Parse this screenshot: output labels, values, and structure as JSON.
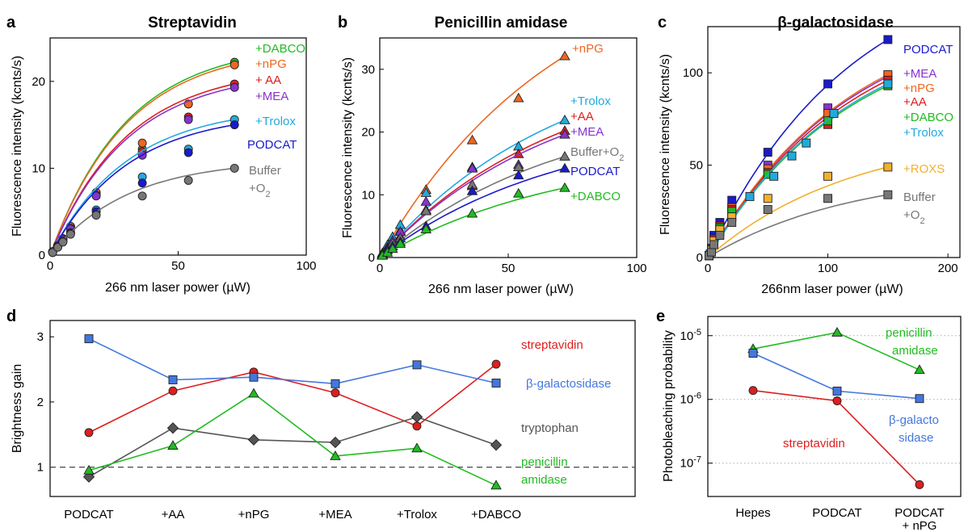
{
  "colors": {
    "green": "#22bb22",
    "orange": "#ee6622",
    "red": "#dd1f1f",
    "purple": "#8833cc",
    "cyan": "#22aadd",
    "blue": "#1a1acc",
    "gray": "#777777",
    "yellow": "#f0b030",
    "light_blue": "#4477dd",
    "dark_gray": "#555555"
  },
  "chart_data": [
    {
      "panel_label": "a",
      "type": "scatter",
      "title": "Streptavidin",
      "xlabel": "266 nm laser power (µW)",
      "ylabel": "Fluorescence intensity (kcnts/s)",
      "xlim": [
        0,
        100
      ],
      "ylim": [
        0,
        25
      ],
      "xticks": [
        0,
        50,
        100
      ],
      "yticks": [
        0,
        10,
        20
      ],
      "marker": "circle",
      "series": [
        {
          "name": "+DABCO",
          "color": "#22bb22",
          "x": [
            1,
            3,
            5,
            8,
            18,
            36,
            54,
            72
          ],
          "y": [
            0.4,
            1.1,
            1.9,
            3.3,
            7.2,
            12.2,
            17.4,
            22.2
          ],
          "fit": [
            0.6,
            10,
            15.5,
            19.6,
            22.0
          ]
        },
        {
          "name": "+nPG",
          "color": "#ee6622",
          "x": [
            1,
            3,
            5,
            8,
            18,
            36,
            54,
            72
          ],
          "y": [
            0.4,
            1.1,
            1.9,
            3.3,
            7.2,
            12.9,
            17.4,
            21.9
          ],
          "fit": [
            0.6,
            10,
            15.5,
            19.5,
            21.8
          ]
        },
        {
          "name": "+ AA",
          "color": "#dd1f1f",
          "x": [
            1,
            3,
            5,
            8,
            18,
            36,
            54,
            72
          ],
          "y": [
            0.4,
            1.1,
            1.8,
            3.1,
            6.9,
            11.9,
            15.9,
            19.7
          ],
          "fit": [
            0.6,
            10,
            15,
            17.7,
            19.5
          ]
        },
        {
          "name": "+MEA",
          "color": "#8833cc",
          "x": [
            1,
            3,
            5,
            8,
            18,
            36,
            54,
            72
          ],
          "y": [
            0.4,
            1.1,
            1.8,
            3.0,
            6.8,
            11.5,
            15.6,
            19.3
          ],
          "fit": [
            0.6,
            10,
            15,
            17.5,
            19.2
          ]
        },
        {
          "name": "+Trolox",
          "color": "#22aadd",
          "x": [
            1,
            3,
            5,
            8,
            18,
            36,
            54,
            72
          ],
          "y": [
            0.3,
            1.0,
            1.6,
            2.6,
            5.2,
            9.0,
            12.2,
            15.6
          ],
          "fit": [
            0.6,
            10,
            15,
            17.5,
            19.2
          ]
        },
        {
          "name": "PODCAT",
          "color": "#1a1acc",
          "x": [
            1,
            3,
            5,
            8,
            18,
            36,
            54,
            72
          ],
          "y": [
            0.3,
            1.0,
            1.6,
            2.5,
            5.0,
            8.3,
            11.8,
            15.0
          ],
          "fit": [
            0.6,
            10,
            15,
            17.5,
            19.2
          ]
        },
        {
          "name": "Buffer",
          "name_line2": "+O",
          "name_sub": "2",
          "color": "#777777",
          "x": [
            1,
            3,
            5,
            8,
            18,
            36,
            54,
            72
          ],
          "y": [
            0.3,
            0.9,
            1.5,
            2.4,
            4.6,
            6.8,
            8.6,
            10.0
          ],
          "fit": [
            0.6,
            10,
            15,
            17.5,
            19.2
          ]
        }
      ]
    },
    {
      "panel_label": "b",
      "type": "scatter",
      "title": "Penicillin amidase",
      "xlabel": "266 nm laser power (µW)",
      "ylabel": "Fluorescence intensity (kcnts/s)",
      "xlim": [
        0,
        100
      ],
      "ylim": [
        0,
        35
      ],
      "xticks": [
        0,
        50,
        100
      ],
      "yticks": [
        0,
        10,
        20,
        30
      ],
      "marker": "triangle",
      "series": [
        {
          "name": "+nPG",
          "color": "#ee6622",
          "x": [
            1,
            3,
            5,
            8,
            18,
            36,
            54,
            72
          ],
          "y": [
            0.5,
            1.6,
            2.9,
            4.3,
            10.8,
            18.7,
            25.4,
            32.1
          ],
          "fit": [
            0.6,
            10,
            15,
            17.5,
            19.2
          ]
        },
        {
          "name": "+Trolox",
          "color": "#22aadd",
          "x": [
            1,
            3,
            5,
            8,
            18,
            36,
            54,
            72
          ],
          "y": [
            0.7,
            2.0,
            3.3,
            5.2,
            10.3,
            14.4,
            17.7,
            21.9
          ],
          "fit": [
            0.6,
            10,
            15,
            17.5,
            19.2
          ]
        },
        {
          "name": "+AA",
          "color": "#dd1f1f",
          "x": [
            1,
            3,
            5,
            8,
            18,
            36,
            54,
            72
          ],
          "y": [
            0.5,
            1.6,
            2.6,
            3.4,
            7.6,
            11.4,
            16.5,
            20.2
          ],
          "fit": [
            0.6,
            10,
            15,
            17.5,
            19.2
          ]
        },
        {
          "name": "+MEA",
          "color": "#8833cc",
          "x": [
            1,
            3,
            5,
            8,
            18,
            36,
            54,
            72
          ],
          "y": [
            0.5,
            1.6,
            2.7,
            4.1,
            8.9,
            14.2,
            14.8,
            19.6
          ],
          "fit": [
            0.6,
            10,
            15,
            17.5,
            19.2
          ]
        },
        {
          "name": "Buffer+O",
          "name_sub": "2",
          "color": "#777777",
          "x": [
            1,
            3,
            5,
            8,
            18,
            36,
            54,
            72
          ],
          "y": [
            0.5,
            1.4,
            2.3,
            3.1,
            7.4,
            11.6,
            14.4,
            16.1
          ],
          "fit": [
            0.6,
            10,
            15,
            17.5,
            19.2
          ]
        },
        {
          "name": "PODCAT",
          "color": "#1a1acc",
          "x": [
            1,
            3,
            5,
            8,
            18,
            36,
            54,
            72
          ],
          "y": [
            0.4,
            1.2,
            1.8,
            2.5,
            5.0,
            10.6,
            13.1,
            14.2
          ],
          "fit": [
            0.6,
            10,
            15,
            17.5,
            19.2
          ]
        },
        {
          "name": "+DABCO",
          "color": "#22bb22",
          "x": [
            1,
            3,
            5,
            8,
            18,
            36,
            54,
            72
          ],
          "y": [
            0.3,
            0.8,
            1.4,
            2.2,
            4.5,
            7.0,
            10.2,
            11.1
          ],
          "fit": [
            0.6,
            10,
            15,
            17.5,
            19.2
          ]
        }
      ]
    },
    {
      "panel_label": "c",
      "type": "scatter",
      "title": "β-galactosidase",
      "xlabel": "266nm laser power (µW)",
      "ylabel": "Fluorescence intensity (kcnts/s)",
      "xlim": [
        0,
        210
      ],
      "ylim": [
        0,
        125
      ],
      "xticks": [
        0,
        100,
        200
      ],
      "yticks": [
        0,
        50,
        100
      ],
      "marker": "square",
      "series": [
        {
          "name": "PODCAT",
          "color": "#1a1acc",
          "x": [
            1,
            3,
            5,
            10,
            20,
            50,
            100,
            150
          ],
          "y": [
            1,
            5,
            12,
            19,
            31,
            57,
            94,
            118
          ],
          "fit": [
            0.6,
            10,
            15,
            17.5,
            19.2
          ]
        },
        {
          "name": "+MEA",
          "color": "#8833cc",
          "x": [
            1,
            3,
            5,
            10,
            20,
            50,
            100,
            150
          ],
          "y": [
            1,
            4,
            10,
            17,
            27,
            50,
            81,
            98
          ],
          "fit": [
            0.6,
            10,
            15,
            17.5,
            19.2
          ]
        },
        {
          "name": "+nPG",
          "color": "#ee6622",
          "x": [
            1,
            3,
            5,
            10,
            20,
            50,
            100,
            150
          ],
          "y": [
            1,
            4,
            10,
            17,
            27,
            48,
            78,
            99
          ],
          "fit": [
            0.6,
            10,
            15,
            17.5,
            19.2
          ]
        },
        {
          "name": "+AA",
          "color": "#dd1f1f",
          "x": [
            1,
            3,
            5,
            10,
            20,
            50,
            100,
            150
          ],
          "y": [
            1,
            4,
            10,
            17,
            26,
            46,
            72,
            96
          ],
          "fit": [
            0.6,
            10,
            15,
            17.5,
            19.2
          ]
        },
        {
          "name": "+DABCO",
          "color": "#22bb22",
          "x": [
            1,
            3,
            5,
            10,
            20,
            50,
            100,
            150
          ],
          "y": [
            1,
            4,
            9,
            16,
            25,
            45,
            74,
            93
          ],
          "fit": [
            0.6,
            10,
            15,
            17.5,
            19.2
          ]
        },
        {
          "name": "+Trolox",
          "color": "#22aadd",
          "x": [
            2,
            5,
            10,
            20,
            35,
            55,
            70,
            82,
            105,
            150
          ],
          "y": [
            2,
            8,
            14,
            22,
            33,
            44,
            55,
            62,
            78,
            94
          ],
          "fit": [
            0.6,
            10,
            15,
            17.5,
            19.2
          ]
        },
        {
          "name": "+ROXS",
          "color": "#f0b030",
          "x": [
            1,
            3,
            5,
            10,
            20,
            50,
            100,
            150
          ],
          "y": [
            1,
            4,
            9,
            15,
            22,
            32,
            44,
            49
          ],
          "fit": [
            0.6,
            10,
            15,
            17.5,
            19.2
          ]
        },
        {
          "name": "Buffer",
          "name_line2": "+O",
          "name_sub": "2",
          "color": "#777777",
          "x": [
            1,
            3,
            5,
            10,
            20,
            50,
            100,
            150
          ],
          "y": [
            1,
            3,
            7,
            12,
            19,
            26,
            32,
            34
          ],
          "fit": [
            0.6,
            10,
            15,
            17.5,
            19.2
          ]
        }
      ]
    },
    {
      "panel_label": "d",
      "type": "line",
      "xlabel": "",
      "ylabel": "Brightness gain",
      "ylim": [
        0.55,
        3.25
      ],
      "yticks": [
        1,
        2,
        3
      ],
      "reference_line": 1,
      "categories": [
        "PODCAT",
        "+AA",
        "+nPG",
        "+MEA",
        "+Trolox",
        "+DABCO"
      ],
      "series": [
        {
          "name": "streptavidin",
          "color": "#dd1f1f",
          "marker": "circle",
          "values": [
            1.53,
            2.17,
            2.46,
            2.14,
            1.63,
            2.58
          ]
        },
        {
          "name": "β-galactosidase",
          "color": "#4477dd",
          "marker": "square",
          "values": [
            2.97,
            2.34,
            2.38,
            2.28,
            2.57,
            2.29
          ]
        },
        {
          "name": "tryptophan",
          "color": "#555555",
          "marker": "diamond",
          "values": [
            0.85,
            1.6,
            1.42,
            1.38,
            1.77,
            1.34
          ]
        },
        {
          "name": "penicillin",
          "name_line2": "amidase",
          "color": "#22bb22",
          "marker": "triangle",
          "values": [
            0.95,
            1.33,
            2.13,
            1.17,
            1.29,
            0.72
          ]
        }
      ]
    },
    {
      "panel_label": "e",
      "type": "line",
      "xlabel": "",
      "ylabel": "Photobleaching probability",
      "yscale": "log",
      "ylim": [
        3e-08,
        2e-05
      ],
      "yticks": [
        1e-07,
        1e-06,
        1e-05
      ],
      "ytick_labels": [
        {
          "base": "10",
          "exp": "-7"
        },
        {
          "base": "10",
          "exp": "-6"
        },
        {
          "base": "10",
          "exp": "-5"
        }
      ],
      "grid": "horizontal-dotted",
      "categories": [
        "Hepes",
        "PODCAT",
        "PODCAT"
      ],
      "category_line2": [
        "",
        "",
        "+ nPG"
      ],
      "series": [
        {
          "name": "penicillin",
          "name_line2": "amidase",
          "color": "#22bb22",
          "marker": "triangle",
          "values": [
            6.2e-06,
            1.12e-05,
            2.9e-06
          ]
        },
        {
          "name": "β-galacto",
          "name_line2": "sidase",
          "color": "#4477dd",
          "marker": "square",
          "values": [
            5.3e-06,
            1.35e-06,
            1.03e-06
          ]
        },
        {
          "name": "streptavidin",
          "color": "#dd1f1f",
          "marker": "circle",
          "values": [
            1.38e-06,
            9.5e-07,
            4.6e-08
          ]
        }
      ]
    }
  ]
}
